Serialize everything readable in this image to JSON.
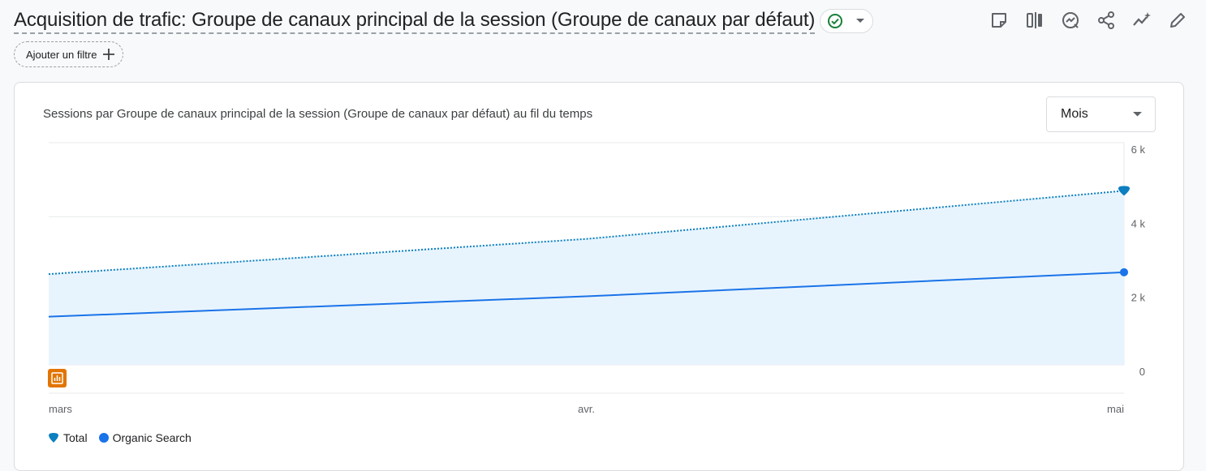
{
  "header": {
    "title": "Acquisition de trafic: Groupe de canaux principal de la session (Groupe de canaux par défaut)"
  },
  "filter": {
    "label": "Ajouter un filtre"
  },
  "card": {
    "title": "Sessions par Groupe de canaux principal de la session (Groupe de canaux par défaut) au fil du temps",
    "period": {
      "selected": "Mois"
    }
  },
  "colors": {
    "total": "#0b7fbf",
    "organic": "#1a73e8",
    "area": "#e8f4fd",
    "annotation": "#e37400"
  },
  "chart_data": {
    "type": "line",
    "x": [
      "mars",
      "avr.",
      "mai"
    ],
    "ylim": [
      0,
      6000
    ],
    "yticks": [
      0,
      2000,
      4000,
      6000
    ],
    "ytick_labels": [
      "0",
      "2 k",
      "4 k",
      "6 k"
    ],
    "series": [
      {
        "name": "Total",
        "values": [
          2450,
          3400,
          4700
        ],
        "style": "dotted",
        "color": "#0b7fbf"
      },
      {
        "name": "Organic Search",
        "values": [
          1300,
          1850,
          2500
        ],
        "style": "solid",
        "color": "#1a73e8"
      }
    ],
    "legend_position": "bottom-left",
    "grid": true
  }
}
